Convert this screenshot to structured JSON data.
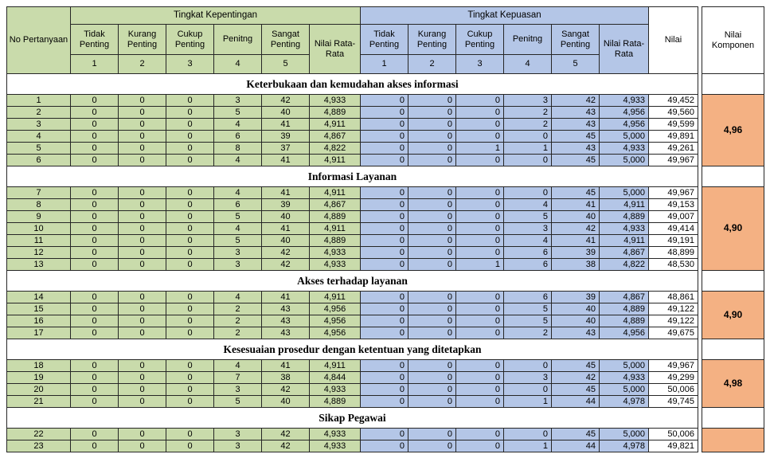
{
  "colors": {
    "green": "#c9dbab",
    "blue": "#b4c6e7",
    "orange": "#f4b183",
    "border": "#262626"
  },
  "header": {
    "no_label": "No Pertanyaan",
    "kepentingan_group": "Tingkat Kepentingan",
    "kepuasan_group": "Tingkat Kepuasan",
    "rating_cols": [
      {
        "label": "Tidak Penting",
        "num": "1"
      },
      {
        "label": "Kurang Penting",
        "num": "2"
      },
      {
        "label": "Cukup Penting",
        "num": "3"
      },
      {
        "label": "Penitng",
        "num": "4"
      },
      {
        "label": "Sangat Penting",
        "num": "5"
      }
    ],
    "avg_label": "Nilai Rata-Rata",
    "nilai_label": "Nilai",
    "komponen_label": "Nilai Komponen"
  },
  "sections": [
    {
      "title": "Keterbukaan dan kemudahan akses informasi",
      "komponen": "4,96",
      "rows": [
        {
          "no": "1",
          "kepentingan": [
            "0",
            "0",
            "0",
            "3",
            "42"
          ],
          "kepentingan_avg": "4,933",
          "kepuasan": [
            "0",
            "0",
            "0",
            "3",
            "42"
          ],
          "kepuasan_avg": "4,933",
          "nilai": "49,452"
        },
        {
          "no": "2",
          "kepentingan": [
            "0",
            "0",
            "0",
            "5",
            "40"
          ],
          "kepentingan_avg": "4,889",
          "kepuasan": [
            "0",
            "0",
            "0",
            "2",
            "43"
          ],
          "kepuasan_avg": "4,956",
          "nilai": "49,560"
        },
        {
          "no": "3",
          "kepentingan": [
            "0",
            "0",
            "0",
            "4",
            "41"
          ],
          "kepentingan_avg": "4,911",
          "kepuasan": [
            "0",
            "0",
            "0",
            "2",
            "43"
          ],
          "kepuasan_avg": "4,956",
          "nilai": "49,599"
        },
        {
          "no": "4",
          "kepentingan": [
            "0",
            "0",
            "0",
            "6",
            "39"
          ],
          "kepentingan_avg": "4,867",
          "kepuasan": [
            "0",
            "0",
            "0",
            "0",
            "45"
          ],
          "kepuasan_avg": "5,000",
          "nilai": "49,891"
        },
        {
          "no": "5",
          "kepentingan": [
            "0",
            "0",
            "0",
            "8",
            "37"
          ],
          "kepentingan_avg": "4,822",
          "kepuasan": [
            "0",
            "0",
            "1",
            "1",
            "43"
          ],
          "kepuasan_avg": "4,933",
          "nilai": "49,261"
        },
        {
          "no": "6",
          "kepentingan": [
            "0",
            "0",
            "0",
            "4",
            "41"
          ],
          "kepentingan_avg": "4,911",
          "kepuasan": [
            "0",
            "0",
            "0",
            "0",
            "45"
          ],
          "kepuasan_avg": "5,000",
          "nilai": "49,967"
        }
      ]
    },
    {
      "title": "Informasi Layanan",
      "komponen": "4,90",
      "rows": [
        {
          "no": "7",
          "kepentingan": [
            "0",
            "0",
            "0",
            "4",
            "41"
          ],
          "kepentingan_avg": "4,911",
          "kepuasan": [
            "0",
            "0",
            "0",
            "0",
            "45"
          ],
          "kepuasan_avg": "5,000",
          "nilai": "49,967"
        },
        {
          "no": "8",
          "kepentingan": [
            "0",
            "0",
            "0",
            "6",
            "39"
          ],
          "kepentingan_avg": "4,867",
          "kepuasan": [
            "0",
            "0",
            "0",
            "4",
            "41"
          ],
          "kepuasan_avg": "4,911",
          "nilai": "49,153"
        },
        {
          "no": "9",
          "kepentingan": [
            "0",
            "0",
            "0",
            "5",
            "40"
          ],
          "kepentingan_avg": "4,889",
          "kepuasan": [
            "0",
            "0",
            "0",
            "5",
            "40"
          ],
          "kepuasan_avg": "4,889",
          "nilai": "49,007"
        },
        {
          "no": "10",
          "kepentingan": [
            "0",
            "0",
            "0",
            "4",
            "41"
          ],
          "kepentingan_avg": "4,911",
          "kepuasan": [
            "0",
            "0",
            "0",
            "3",
            "42"
          ],
          "kepuasan_avg": "4,933",
          "nilai": "49,414"
        },
        {
          "no": "11",
          "kepentingan": [
            "0",
            "0",
            "0",
            "5",
            "40"
          ],
          "kepentingan_avg": "4,889",
          "kepuasan": [
            "0",
            "0",
            "0",
            "4",
            "41"
          ],
          "kepuasan_avg": "4,911",
          "nilai": "49,191"
        },
        {
          "no": "12",
          "kepentingan": [
            "0",
            "0",
            "0",
            "3",
            "42"
          ],
          "kepentingan_avg": "4,933",
          "kepuasan": [
            "0",
            "0",
            "0",
            "6",
            "39"
          ],
          "kepuasan_avg": "4,867",
          "nilai": "48,899"
        },
        {
          "no": "13",
          "kepentingan": [
            "0",
            "0",
            "0",
            "3",
            "42"
          ],
          "kepentingan_avg": "4,933",
          "kepuasan": [
            "0",
            "0",
            "1",
            "6",
            "38"
          ],
          "kepuasan_avg": "4,822",
          "nilai": "48,530"
        }
      ]
    },
    {
      "title": "Akses terhadap layanan",
      "komponen": "4,90",
      "rows": [
        {
          "no": "14",
          "kepentingan": [
            "0",
            "0",
            "0",
            "4",
            "41"
          ],
          "kepentingan_avg": "4,911",
          "kepuasan": [
            "0",
            "0",
            "0",
            "6",
            "39"
          ],
          "kepuasan_avg": "4,867",
          "nilai": "48,861"
        },
        {
          "no": "15",
          "kepentingan": [
            "0",
            "0",
            "0",
            "2",
            "43"
          ],
          "kepentingan_avg": "4,956",
          "kepuasan": [
            "0",
            "0",
            "0",
            "5",
            "40"
          ],
          "kepuasan_avg": "4,889",
          "nilai": "49,122"
        },
        {
          "no": "16",
          "kepentingan": [
            "0",
            "0",
            "0",
            "2",
            "43"
          ],
          "kepentingan_avg": "4,956",
          "kepuasan": [
            "0",
            "0",
            "0",
            "5",
            "40"
          ],
          "kepuasan_avg": "4,889",
          "nilai": "49,122"
        },
        {
          "no": "17",
          "kepentingan": [
            "0",
            "0",
            "0",
            "2",
            "43"
          ],
          "kepentingan_avg": "4,956",
          "kepuasan": [
            "0",
            "0",
            "0",
            "2",
            "43"
          ],
          "kepuasan_avg": "4,956",
          "nilai": "49,675"
        }
      ]
    },
    {
      "title": "Kesesuaian prosedur dengan ketentuan yang ditetapkan",
      "komponen": "4,98",
      "rows": [
        {
          "no": "18",
          "kepentingan": [
            "0",
            "0",
            "0",
            "4",
            "41"
          ],
          "kepentingan_avg": "4,911",
          "kepuasan": [
            "0",
            "0",
            "0",
            "0",
            "45"
          ],
          "kepuasan_avg": "5,000",
          "nilai": "49,967"
        },
        {
          "no": "19",
          "kepentingan": [
            "0",
            "0",
            "0",
            "7",
            "38"
          ],
          "kepentingan_avg": "4,844",
          "kepuasan": [
            "0",
            "0",
            "0",
            "3",
            "42"
          ],
          "kepuasan_avg": "4,933",
          "nilai": "49,299"
        },
        {
          "no": "20",
          "kepentingan": [
            "0",
            "0",
            "0",
            "3",
            "42"
          ],
          "kepentingan_avg": "4,933",
          "kepuasan": [
            "0",
            "0",
            "0",
            "0",
            "45"
          ],
          "kepuasan_avg": "5,000",
          "nilai": "50,006"
        },
        {
          "no": "21",
          "kepentingan": [
            "0",
            "0",
            "0",
            "5",
            "40"
          ],
          "kepentingan_avg": "4,889",
          "kepuasan": [
            "0",
            "0",
            "0",
            "1",
            "44"
          ],
          "kepuasan_avg": "4,978",
          "nilai": "49,745"
        }
      ]
    },
    {
      "title": "Sikap Pegawai",
      "komponen": "",
      "rows": [
        {
          "no": "22",
          "kepentingan": [
            "0",
            "0",
            "0",
            "3",
            "42"
          ],
          "kepentingan_avg": "4,933",
          "kepuasan": [
            "0",
            "0",
            "0",
            "0",
            "45"
          ],
          "kepuasan_avg": "5,000",
          "nilai": "50,006"
        },
        {
          "no": "23",
          "kepentingan": [
            "0",
            "0",
            "0",
            "3",
            "42"
          ],
          "kepentingan_avg": "4,933",
          "kepuasan": [
            "0",
            "0",
            "0",
            "1",
            "44"
          ],
          "kepuasan_avg": "4,978",
          "nilai": "49,821"
        }
      ]
    }
  ]
}
